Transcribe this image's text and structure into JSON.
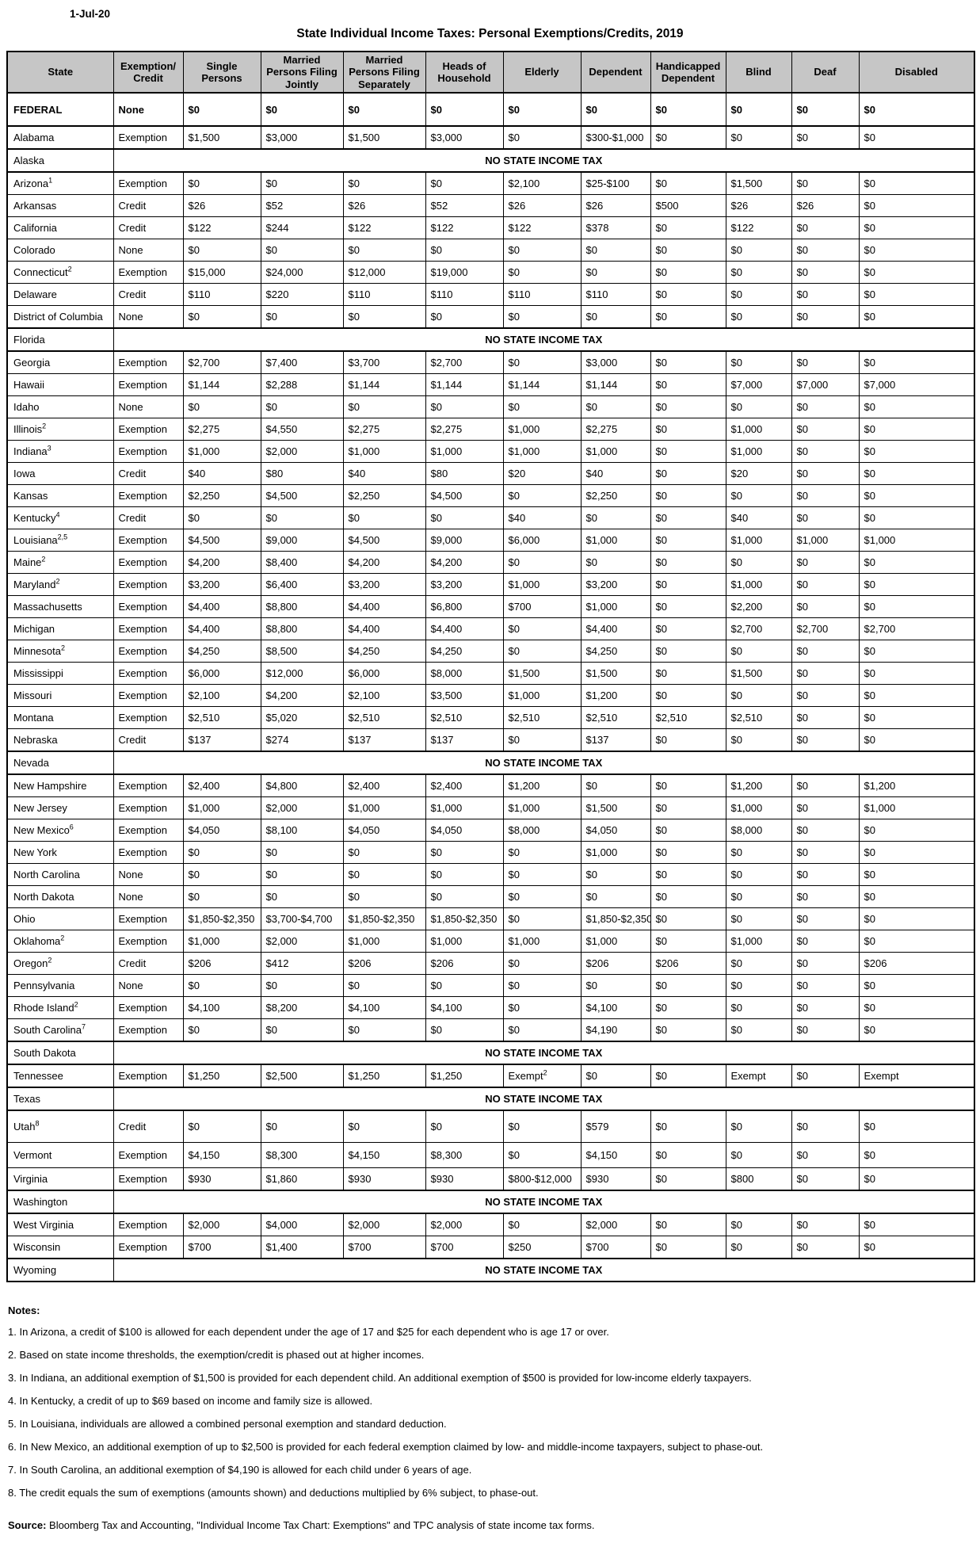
{
  "page": {
    "date": "1-Jul-20",
    "title": "State Individual Income Taxes: Personal Exemptions/Credits, 2019"
  },
  "table": {
    "columns": [
      "State",
      "Exemption/\nCredit",
      "Single Persons",
      "Married Persons Filing Jointly",
      "Married Persons Filing Separately",
      "Heads of Household",
      "Elderly",
      "Dependent",
      "Handicapped Dependent",
      "Blind",
      "Deaf",
      "Disabled"
    ],
    "no_tax_label": "NO STATE INCOME TAX",
    "rows": [
      {
        "state": "FEDERAL",
        "bold": true,
        "values": [
          "None",
          "$0",
          "$0",
          "$0",
          "$0",
          "$0",
          "$0",
          "$0",
          "$0",
          "$0",
          "$0"
        ]
      },
      {
        "state": "Alabama",
        "values": [
          "Exemption",
          "$1,500",
          "$3,000",
          "$1,500",
          "$3,000",
          "$0",
          "$300-$1,000",
          "$0",
          "$0",
          "$0",
          "$0"
        ]
      },
      {
        "state": "Alaska",
        "no_tax": true
      },
      {
        "state": "Arizona",
        "sup": "1",
        "values": [
          "Exemption",
          "$0",
          "$0",
          "$0",
          "$0",
          "$2,100",
          "$25-$100",
          "$0",
          "$1,500",
          "$0",
          "$0"
        ]
      },
      {
        "state": "Arkansas",
        "values": [
          "Credit",
          "$26",
          "$52",
          "$26",
          "$52",
          "$26",
          "$26",
          "$500",
          "$26",
          "$26",
          "$0"
        ]
      },
      {
        "state": "California",
        "values": [
          "Credit",
          "$122",
          "$244",
          "$122",
          "$122",
          "$122",
          "$378",
          "$0",
          "$122",
          "$0",
          "$0"
        ]
      },
      {
        "state": "Colorado",
        "values": [
          "None",
          "$0",
          "$0",
          "$0",
          "$0",
          "$0",
          "$0",
          "$0",
          "$0",
          "$0",
          "$0"
        ]
      },
      {
        "state": "Connecticut",
        "sup": "2",
        "values": [
          "Exemption",
          "$15,000",
          "$24,000",
          "$12,000",
          "$19,000",
          "$0",
          "$0",
          "$0",
          "$0",
          "$0",
          "$0"
        ]
      },
      {
        "state": "Delaware",
        "values": [
          "Credit",
          "$110",
          "$220",
          "$110",
          "$110",
          "$110",
          "$110",
          "$0",
          "$0",
          "$0",
          "$0"
        ]
      },
      {
        "state": "District of Columbia",
        "values": [
          "None",
          "$0",
          "$0",
          "$0",
          "$0",
          "$0",
          "$0",
          "$0",
          "$0",
          "$0",
          "$0"
        ]
      },
      {
        "state": "Florida",
        "no_tax": true
      },
      {
        "state": "Georgia",
        "values": [
          "Exemption",
          "$2,700",
          "$7,400",
          "$3,700",
          "$2,700",
          "$0",
          "$3,000",
          "$0",
          "$0",
          "$0",
          "$0"
        ]
      },
      {
        "state": "Hawaii",
        "values": [
          "Exemption",
          "$1,144",
          "$2,288",
          "$1,144",
          "$1,144",
          "$1,144",
          "$1,144",
          "$0",
          "$7,000",
          "$7,000",
          "$7,000"
        ]
      },
      {
        "state": "Idaho",
        "values": [
          "None",
          "$0",
          "$0",
          "$0",
          "$0",
          "$0",
          "$0",
          "$0",
          "$0",
          "$0",
          "$0"
        ]
      },
      {
        "state": "Illinois",
        "sup": "2",
        "values": [
          "Exemption",
          "$2,275",
          "$4,550",
          "$2,275",
          "$2,275",
          "$1,000",
          "$2,275",
          "$0",
          "$1,000",
          "$0",
          "$0"
        ]
      },
      {
        "state": "Indiana",
        "sup": "3",
        "values": [
          "Exemption",
          "$1,000",
          "$2,000",
          "$1,000",
          "$1,000",
          "$1,000",
          "$1,000",
          "$0",
          "$1,000",
          "$0",
          "$0"
        ]
      },
      {
        "state": "Iowa",
        "values": [
          "Credit",
          "$40",
          "$80",
          "$40",
          "$80",
          "$20",
          "$40",
          "$0",
          "$20",
          "$0",
          "$0"
        ]
      },
      {
        "state": "Kansas",
        "values": [
          "Exemption",
          "$2,250",
          "$4,500",
          "$2,250",
          "$4,500",
          "$0",
          "$2,250",
          "$0",
          "$0",
          "$0",
          "$0"
        ]
      },
      {
        "state": "Kentucky",
        "sup": "4",
        "values": [
          "Credit",
          "$0",
          "$0",
          "$0",
          "$0",
          "$40",
          "$0",
          "$0",
          "$40",
          "$0",
          "$0"
        ]
      },
      {
        "state": "Louisiana",
        "sup": "2,5",
        "values": [
          "Exemption",
          "$4,500",
          "$9,000",
          "$4,500",
          "$9,000",
          "$6,000",
          "$1,000",
          "$0",
          "$1,000",
          "$1,000",
          "$1,000"
        ]
      },
      {
        "state": "Maine",
        "sup": "2",
        "values": [
          "Exemption",
          "$4,200",
          "$8,400",
          "$4,200",
          "$4,200",
          "$0",
          "$0",
          "$0",
          "$0",
          "$0",
          "$0"
        ]
      },
      {
        "state": "Maryland",
        "sup": "2",
        "values": [
          "Exemption",
          "$3,200",
          "$6,400",
          "$3,200",
          "$3,200",
          "$1,000",
          "$3,200",
          "$0",
          "$1,000",
          "$0",
          "$0"
        ]
      },
      {
        "state": "Massachusetts",
        "values": [
          "Exemption",
          "$4,400",
          "$8,800",
          "$4,400",
          "$6,800",
          "$700",
          "$1,000",
          "$0",
          "$2,200",
          "$0",
          "$0"
        ]
      },
      {
        "state": "Michigan",
        "values": [
          "Exemption",
          "$4,400",
          "$8,800",
          "$4,400",
          "$4,400",
          "$0",
          "$4,400",
          "$0",
          "$2,700",
          "$2,700",
          "$2,700"
        ]
      },
      {
        "state": "Minnesota",
        "sup": "2",
        "values": [
          "Exemption",
          "$4,250",
          "$8,500",
          "$4,250",
          "$4,250",
          "$0",
          "$4,250",
          "$0",
          "$0",
          "$0",
          "$0"
        ]
      },
      {
        "state": "Mississippi",
        "values": [
          "Exemption",
          "$6,000",
          "$12,000",
          "$6,000",
          "$8,000",
          "$1,500",
          "$1,500",
          "$0",
          "$1,500",
          "$0",
          "$0"
        ]
      },
      {
        "state": "Missouri",
        "values": [
          "Exemption",
          "$2,100",
          "$4,200",
          "$2,100",
          "$3,500",
          "$1,000",
          "$1,200",
          "$0",
          "$0",
          "$0",
          "$0"
        ]
      },
      {
        "state": "Montana",
        "values": [
          "Exemption",
          "$2,510",
          "$5,020",
          "$2,510",
          "$2,510",
          "$2,510",
          "$2,510",
          "$2,510",
          "$2,510",
          "$0",
          "$0"
        ]
      },
      {
        "state": "Nebraska",
        "values": [
          "Credit",
          "$137",
          "$274",
          "$137",
          "$137",
          "$0",
          "$137",
          "$0",
          "$0",
          "$0",
          "$0"
        ]
      },
      {
        "state": "Nevada",
        "no_tax": true
      },
      {
        "state": "New Hampshire",
        "values": [
          "Exemption",
          "$2,400",
          "$4,800",
          "$2,400",
          "$2,400",
          "$1,200",
          "$0",
          "$0",
          "$1,200",
          "$0",
          "$1,200"
        ]
      },
      {
        "state": "New Jersey",
        "values": [
          "Exemption",
          "$1,000",
          "$2,000",
          "$1,000",
          "$1,000",
          "$1,000",
          "$1,500",
          "$0",
          "$1,000",
          "$0",
          "$1,000"
        ]
      },
      {
        "state": "New Mexico",
        "sup": "6",
        "values": [
          "Exemption",
          "$4,050",
          "$8,100",
          "$4,050",
          "$4,050",
          "$8,000",
          "$4,050",
          "$0",
          "$8,000",
          "$0",
          "$0"
        ]
      },
      {
        "state": "New York",
        "values": [
          "Exemption",
          "$0",
          "$0",
          "$0",
          "$0",
          "$0",
          "$1,000",
          "$0",
          "$0",
          "$0",
          "$0"
        ]
      },
      {
        "state": "North Carolina",
        "values": [
          "None",
          "$0",
          "$0",
          "$0",
          "$0",
          "$0",
          "$0",
          "$0",
          "$0",
          "$0",
          "$0"
        ]
      },
      {
        "state": "North Dakota",
        "values": [
          "None",
          "$0",
          "$0",
          "$0",
          "$0",
          "$0",
          "$0",
          "$0",
          "$0",
          "$0",
          "$0"
        ]
      },
      {
        "state": "Ohio",
        "values": [
          "Exemption",
          "$1,850-$2,350",
          "$3,700-$4,700",
          "$1,850-$2,350",
          "$1,850-$2,350",
          "$0",
          "$1,850-$2,350",
          "$0",
          "$0",
          "$0",
          "$0"
        ]
      },
      {
        "state": "Oklahoma",
        "sup": "2",
        "values": [
          "Exemption",
          "$1,000",
          "$2,000",
          "$1,000",
          "$1,000",
          "$1,000",
          "$1,000",
          "$0",
          "$1,000",
          "$0",
          "$0"
        ]
      },
      {
        "state": "Oregon",
        "sup": "2",
        "values": [
          "Credit",
          "$206",
          "$412",
          "$206",
          "$206",
          "$0",
          "$206",
          "$206",
          "$0",
          "$0",
          "$206"
        ]
      },
      {
        "state": "Pennsylvania",
        "values": [
          "None",
          "$0",
          "$0",
          "$0",
          "$0",
          "$0",
          "$0",
          "$0",
          "$0",
          "$0",
          "$0"
        ]
      },
      {
        "state": "Rhode Island",
        "sup": "2",
        "values": [
          "Exemption",
          "$4,100",
          "$8,200",
          "$4,100",
          "$4,100",
          "$0",
          "$4,100",
          "$0",
          "$0",
          "$0",
          "$0"
        ]
      },
      {
        "state": "South Carolina",
        "sup": "7",
        "values": [
          "Exemption",
          "$0",
          "$0",
          "$0",
          "$0",
          "$0",
          "$4,190",
          "$0",
          "$0",
          "$0",
          "$0"
        ]
      },
      {
        "state": "South Dakota",
        "no_tax": true
      },
      {
        "state": "Tennessee",
        "values": [
          "Exemption",
          "$1,250",
          "$2,500",
          "$1,250",
          "$1,250",
          "Exempt^2",
          "$0",
          "$0",
          "Exempt",
          "$0",
          "Exempt"
        ]
      },
      {
        "state": "Texas",
        "no_tax": true
      },
      {
        "state": "Utah",
        "sup": "8",
        "tall": true,
        "values": [
          "Credit",
          "$0",
          "$0",
          "$0",
          "$0",
          "$0",
          "$579",
          "$0",
          "$0",
          "$0",
          "$0"
        ]
      },
      {
        "state": "Vermont",
        "tall2": true,
        "values": [
          "Exemption",
          "$4,150",
          "$8,300",
          "$4,150",
          "$8,300",
          "$0",
          "$4,150",
          "$0",
          "$0",
          "$0",
          "$0"
        ]
      },
      {
        "state": "Virginia",
        "values": [
          "Exemption",
          "$930",
          "$1,860",
          "$930",
          "$930",
          "$800-$12,000",
          "$930",
          "$0",
          "$800",
          "$0",
          "$0"
        ]
      },
      {
        "state": "Washington",
        "no_tax": true
      },
      {
        "state": "West Virginia",
        "values": [
          "Exemption",
          "$2,000",
          "$4,000",
          "$2,000",
          "$2,000",
          "$0",
          "$2,000",
          "$0",
          "$0",
          "$0",
          "$0"
        ]
      },
      {
        "state": "Wisconsin",
        "values": [
          "Exemption",
          "$700",
          "$1,400",
          "$700",
          "$700",
          "$250",
          "$700",
          "$0",
          "$0",
          "$0",
          "$0"
        ]
      },
      {
        "state": "Wyoming",
        "no_tax": true
      }
    ]
  },
  "notes": {
    "heading": "Notes:",
    "items": [
      "1. In Arizona, a credit of $100 is allowed for each dependent under the age of 17 and $25 for each dependent who is age 17 or over.",
      "2. Based on state income thresholds, the exemption/credit is phased out at higher incomes.",
      "3. In Indiana, an additional exemption of $1,500 is provided for each dependent child. An additional exemption of $500 is provided for low-income elderly taxpayers.",
      "4. In Kentucky, a credit of up to $69 based on income and family size is allowed.",
      "5. In Louisiana, individuals are allowed a combined personal exemption and standard deduction.",
      "6. In New Mexico, an additional exemption of up to $2,500 is provided for each federal exemption claimed by low- and middle-income taxpayers, subject to phase-out.",
      "7. In South Carolina, an additional exemption of $4,190 is allowed for each child under 6 years of age.",
      "8. The credit equals the sum of exemptions (amounts shown) and deductions multiplied by 6% subject, to phase-out."
    ],
    "source_label": "Source:",
    "source_text": " Bloomberg Tax and Accounting, \"Individual Income Tax Chart: Exemptions\" and TPC analysis of state income tax forms."
  }
}
